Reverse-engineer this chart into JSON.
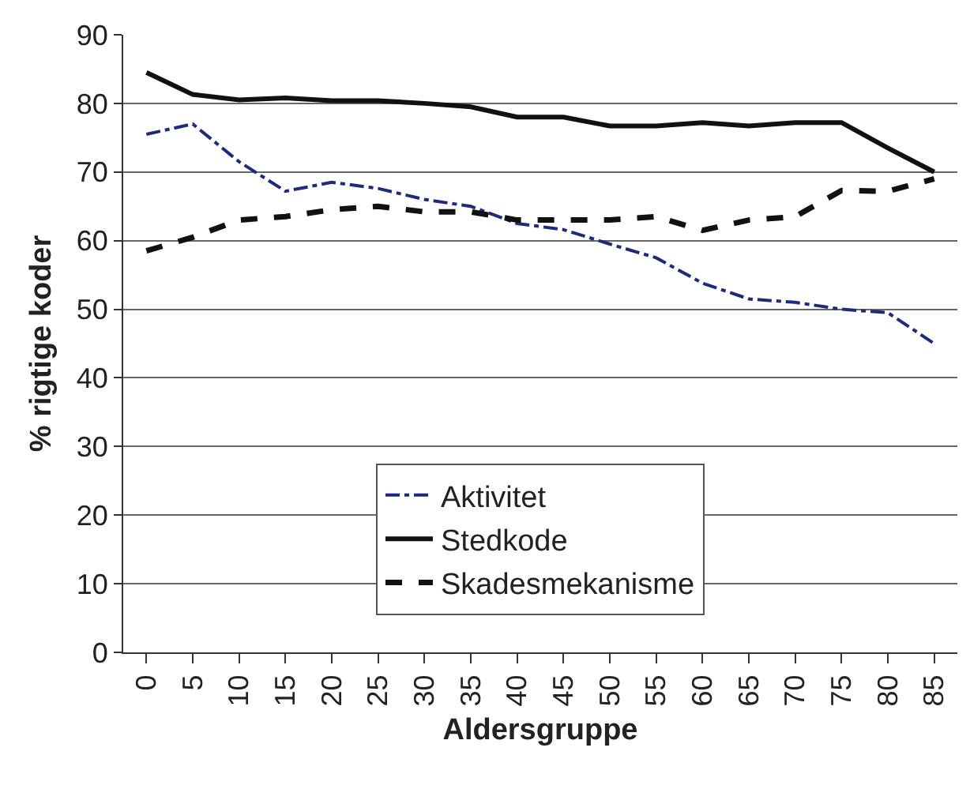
{
  "chart_data": {
    "type": "line",
    "xlabel": "Aldersgruppe",
    "ylabel": "% rigtige koder",
    "categories": [
      "0",
      "5",
      "10",
      "15",
      "20",
      "25",
      "30",
      "35",
      "40",
      "45",
      "50",
      "55",
      "60",
      "65",
      "70",
      "75",
      "80",
      "85"
    ],
    "series": [
      {
        "name": "Aktivitet",
        "color": "#1f2a78",
        "line_style": "dashdot",
        "values": [
          75.5,
          77,
          71.5,
          67.2,
          68.5,
          67.6,
          66,
          65,
          62.5,
          61.6,
          59.5,
          57.5,
          53.8,
          51.5,
          51,
          50,
          49.5,
          45
        ]
      },
      {
        "name": "Stedkode",
        "color": "#111111",
        "line_style": "solid",
        "values": [
          84.5,
          81.3,
          80.5,
          80.8,
          80.4,
          80.4,
          80,
          79.5,
          78,
          78,
          76.7,
          76.7,
          77.2,
          76.7,
          77.2,
          77.2,
          73.5,
          70
        ]
      },
      {
        "name": "Skadesmekanisme",
        "color": "#111111",
        "line_style": "dashed",
        "values": [
          58.5,
          60.5,
          63,
          63.5,
          64.5,
          65,
          64.2,
          64.2,
          63,
          63,
          63,
          63.5,
          61.5,
          63,
          63.5,
          67.3,
          67.2,
          69
        ]
      }
    ],
    "ylim": [
      0,
      90
    ],
    "yticks": [
      0,
      10,
      20,
      30,
      40,
      50,
      60,
      70,
      80,
      90
    ],
    "grid": "y",
    "legend": "bottom",
    "marker": "none"
  }
}
